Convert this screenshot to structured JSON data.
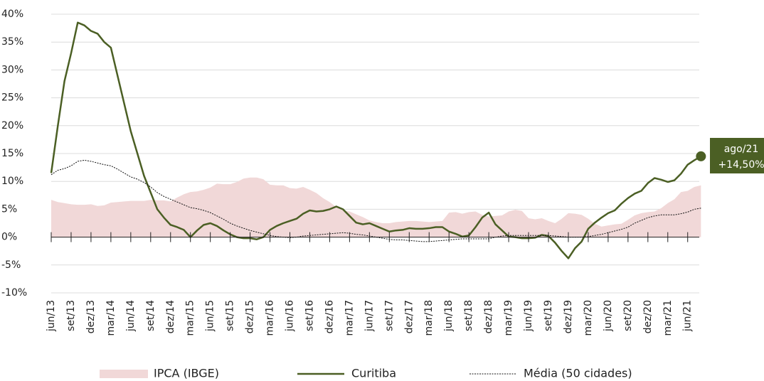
{
  "chart_data": {
    "type": "line",
    "x": [
      "jun/13",
      "jul/13",
      "ago/13",
      "set/13",
      "out/13",
      "nov/13",
      "dez/13",
      "jan/14",
      "fev/14",
      "mar/14",
      "abr/14",
      "mai/14",
      "jun/14",
      "jul/14",
      "ago/14",
      "set/14",
      "out/14",
      "nov/14",
      "dez/14",
      "jan/15",
      "fev/15",
      "mar/15",
      "abr/15",
      "mai/15",
      "jun/15",
      "jul/15",
      "ago/15",
      "set/15",
      "out/15",
      "nov/15",
      "dez/15",
      "jan/16",
      "fev/16",
      "mar/16",
      "abr/16",
      "mai/16",
      "jun/16",
      "jul/16",
      "ago/16",
      "set/16",
      "out/16",
      "nov/16",
      "dez/16",
      "jan/17",
      "fev/17",
      "mar/17",
      "abr/17",
      "mai/17",
      "jun/17",
      "jul/17",
      "ago/17",
      "set/17",
      "out/17",
      "nov/17",
      "dez/17",
      "jan/18",
      "fev/18",
      "mar/18",
      "abr/18",
      "mai/18",
      "jun/18",
      "jul/18",
      "ago/18",
      "set/18",
      "out/18",
      "nov/18",
      "dez/18",
      "jan/19",
      "fev/19",
      "mar/19",
      "abr/19",
      "mai/19",
      "jun/19",
      "jul/19",
      "ago/19",
      "set/19",
      "out/19",
      "nov/19",
      "dez/19",
      "jan/20",
      "fev/20",
      "mar/20",
      "abr/20",
      "mai/20",
      "jun/20",
      "jul/20",
      "ago/20",
      "set/20",
      "out/20",
      "nov/20",
      "dez/20",
      "jan/21",
      "fev/21",
      "mar/21",
      "abr/21",
      "mai/21",
      "jun/21",
      "jul/21",
      "ago/21"
    ],
    "xticks": [
      "jun/13",
      "set/13",
      "dez/13",
      "mar/14",
      "jun/14",
      "set/14",
      "dez/14",
      "mar/15",
      "jun/15",
      "set/15",
      "dez/15",
      "mar/16",
      "jun/16",
      "set/16",
      "dez/16",
      "mar/17",
      "jun/17",
      "set/17",
      "dez/17",
      "mar/18",
      "jun/18",
      "set/18",
      "dez/18",
      "mar/19",
      "jun/19",
      "set/19",
      "dez/19",
      "mar/20",
      "jun/20",
      "set/20",
      "dez/20",
      "mar/21",
      "jun/21"
    ],
    "series": [
      {
        "name": "IPCA (IBGE)",
        "color": "#f1d8d8",
        "style": "area",
        "values": [
          6.7,
          6.3,
          6.1,
          5.9,
          5.8,
          5.8,
          5.9,
          5.6,
          5.7,
          6.2,
          6.3,
          6.4,
          6.5,
          6.5,
          6.5,
          6.7,
          6.6,
          6.6,
          6.4,
          7.1,
          7.7,
          8.1,
          8.2,
          8.5,
          8.9,
          9.6,
          9.5,
          9.5,
          9.9,
          10.5,
          10.7,
          10.7,
          10.4,
          9.4,
          9.3,
          9.3,
          8.8,
          8.7,
          9,
          8.5,
          7.9,
          7,
          6.3,
          5.4,
          4.8,
          4.6,
          4.1,
          3.6,
          3,
          2.7,
          2.5,
          2.5,
          2.7,
          2.8,
          2.9,
          2.9,
          2.8,
          2.7,
          2.8,
          2.9,
          4.4,
          4.5,
          4.2,
          4.5,
          4.6,
          4,
          3.7,
          3.8,
          3.9,
          4.6,
          4.9,
          4.7,
          3.4,
          3.2,
          3.4,
          2.9,
          2.5,
          3.3,
          4.3,
          4.2,
          4,
          3.3,
          2.4,
          1.9,
          2.1,
          2.3,
          2.4,
          3.1,
          3.9,
          4.3,
          4.5,
          4.6,
          5.2,
          6.1,
          6.8,
          8.1,
          8.3,
          9,
          9.3
        ]
      },
      {
        "name": "Curitiba",
        "color": "#4b5f24",
        "style": "solid",
        "values": [
          11.5,
          20,
          28,
          33,
          38.5,
          38,
          37,
          36.5,
          35,
          34,
          29,
          24,
          19,
          15,
          11,
          8,
          5,
          3.5,
          2.2,
          1.8,
          1.3,
          0,
          1.2,
          2.2,
          2.5,
          2,
          1.2,
          0.5,
          0,
          -0.2,
          -0.2,
          -0.4,
          0,
          1.3,
          2,
          2.5,
          2.9,
          3.3,
          4.2,
          4.8,
          4.6,
          4.7,
          5,
          5.5,
          5,
          3.8,
          2.6,
          2.3,
          2.5,
          2,
          1.5,
          1,
          1.2,
          1.3,
          1.6,
          1.5,
          1.5,
          1.6,
          1.8,
          1.8,
          1,
          0.6,
          0.1,
          0.3,
          1.8,
          3.5,
          4.4,
          2.3,
          1.2,
          0.1,
          0,
          -0.2,
          -0.2,
          -0.1,
          0.4,
          0.2,
          -1,
          -2.5,
          -3.8,
          -2,
          -0.8,
          1.5,
          2.6,
          3.5,
          4.3,
          4.8,
          6,
          7,
          7.8,
          8.3,
          9.7,
          10.6,
          10.3,
          9.9,
          10.2,
          11.4,
          13,
          13.8,
          14.5
        ]
      },
      {
        "name": "Média (50 cidades)",
        "color": "#111111",
        "style": "dotted",
        "values": [
          11.2,
          12,
          12.3,
          12.8,
          13.6,
          13.8,
          13.6,
          13.3,
          13,
          12.8,
          12.2,
          11.5,
          10.8,
          10.4,
          9.8,
          9,
          8,
          7.3,
          6.8,
          6.3,
          5.8,
          5.3,
          5.1,
          4.8,
          4.4,
          3.8,
          3.2,
          2.5,
          2,
          1.6,
          1.2,
          0.9,
          0.6,
          0.3,
          0.1,
          0,
          -0.1,
          0,
          0.2,
          0.3,
          0.4,
          0.5,
          0.6,
          0.7,
          0.8,
          0.7,
          0.5,
          0.4,
          0.2,
          0,
          -0.2,
          -0.4,
          -0.5,
          -0.5,
          -0.6,
          -0.7,
          -0.8,
          -0.8,
          -0.7,
          -0.6,
          -0.5,
          -0.4,
          -0.3,
          -0.3,
          -0.3,
          -0.3,
          -0.3,
          0,
          0.2,
          0.3,
          0.3,
          0.3,
          0.3,
          0.3,
          0.3,
          0.3,
          0.2,
          0.1,
          0,
          0,
          0,
          0.1,
          0.3,
          0.5,
          0.8,
          1.1,
          1.4,
          1.8,
          2.5,
          3,
          3.5,
          3.8,
          4,
          4,
          4,
          4.2,
          4.5,
          5,
          5.2
        ]
      }
    ],
    "annotation": {
      "label": "ago/21",
      "value": "+14,50%"
    },
    "ylim": [
      -10,
      40
    ],
    "yticks": [
      {
        "value": -10,
        "label": "-10%"
      },
      {
        "value": -5,
        "label": "-5%"
      },
      {
        "value": 0,
        "label": "0%"
      },
      {
        "value": 5,
        "label": "5%"
      },
      {
        "value": 10,
        "label": "10%"
      },
      {
        "value": 15,
        "label": "15%"
      },
      {
        "value": 20,
        "label": "20%"
      },
      {
        "value": 25,
        "label": "25%"
      },
      {
        "value": 30,
        "label": "30%"
      },
      {
        "value": 35,
        "label": "35%"
      },
      {
        "value": 40,
        "label": "40%"
      }
    ],
    "grid": true,
    "legend": "bottom"
  }
}
